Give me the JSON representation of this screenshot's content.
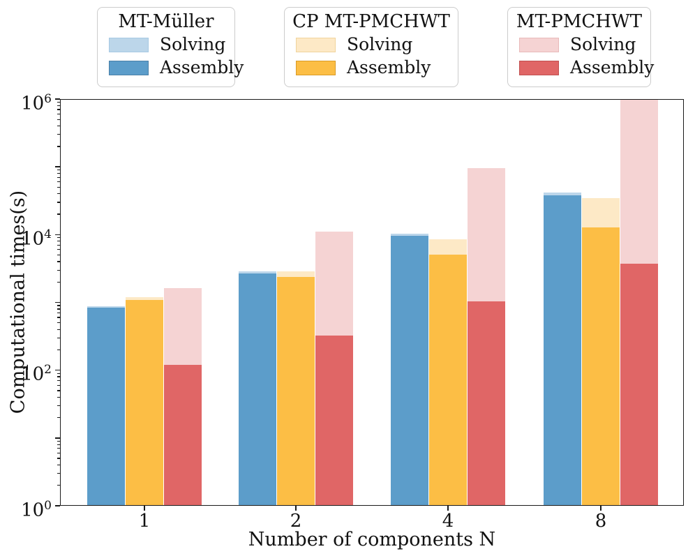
{
  "figure": {
    "y_ticks": [
      {
        "base": "10",
        "exp": "6"
      },
      {
        "base": "10",
        "exp": "4"
      },
      {
        "base": "10",
        "exp": "2"
      },
      {
        "base": "10",
        "exp": "0"
      }
    ],
    "x_ticks": [
      "1",
      "2",
      "4",
      "8"
    ]
  },
  "legend": {
    "groups": [
      {
        "title": "MT-Müller",
        "items": [
          {
            "label": "Solving"
          },
          {
            "label": "Assembly"
          }
        ]
      },
      {
        "title": "CP MT-PMCHWT",
        "items": [
          {
            "label": "Solving"
          },
          {
            "label": "Assembly"
          }
        ]
      },
      {
        "title": "MT-PMCHWT",
        "items": [
          {
            "label": "Solving"
          },
          {
            "label": "Assembly"
          }
        ]
      }
    ]
  },
  "chart_data": {
    "type": "bar",
    "stacked": true,
    "yscale": "log",
    "ylim": [
      1,
      1000000
    ],
    "grid": false,
    "legend_position": "top",
    "title": "",
    "xlabel": "Number of components N",
    "ylabel": "Computational times(s)",
    "categories": [
      "1",
      "2",
      "4",
      "8"
    ],
    "series": [
      {
        "name": "MT-Müller",
        "assembly": [
          840,
          2700,
          9700,
          38000
        ],
        "solving": [
          40,
          170,
          600,
          3500
        ],
        "totals": [
          880,
          2870,
          10300,
          41500
        ],
        "color_assembly": "#5c9dca",
        "color_solving": "#bcd6ea",
        "edge_assembly": "#4a80a8",
        "edge_solving": "#a6c9e3"
      },
      {
        "name": "CP MT-PMCHWT",
        "assembly": [
          1090,
          2370,
          5100,
          12800
        ],
        "solving": [
          100,
          500,
          3400,
          21700
        ],
        "totals": [
          1190,
          2870,
          8500,
          34500
        ],
        "color_assembly": "#fcbe45",
        "color_solving": "#fde9c6",
        "edge_assembly": "#d99b26",
        "edge_solving": "#f0d49c"
      },
      {
        "name": "MT-PMCHWT",
        "assembly": [
          120,
          325,
          1040,
          3700
        ],
        "solving": [
          1510,
          10700,
          94000,
          996300
        ],
        "totals": [
          1630,
          11025,
          95040,
          1000000
        ],
        "color_assembly": "#e06666",
        "color_solving": "#f5d3d3",
        "edge_assembly": "#c04f4f",
        "edge_solving": "#e8b9b9"
      }
    ]
  }
}
